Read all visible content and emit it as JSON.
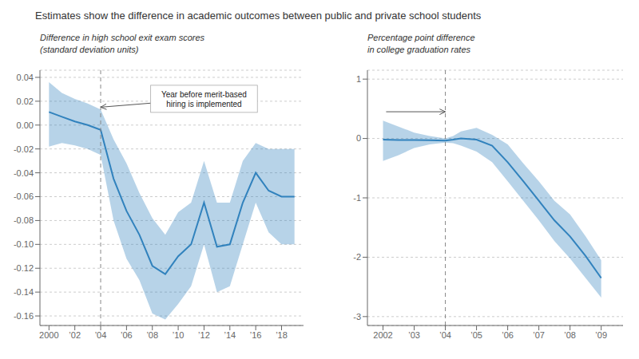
{
  "subtitle": "Estimates show the difference in academic outcomes between public and private school students",
  "chart_data": [
    {
      "type": "line",
      "ylabel": "Difference in high school exit exam scores\n(standard deviation units)",
      "x": [
        2000,
        2001,
        2002,
        2003,
        2004,
        2005,
        2006,
        2007,
        2008,
        2009,
        2010,
        2011,
        2012,
        2013,
        2014,
        2015,
        2016,
        2017,
        2018,
        2019
      ],
      "series": [
        {
          "values": [
            0.011,
            0.007,
            0.003,
            0.0,
            -0.004,
            -0.045,
            -0.072,
            -0.092,
            -0.118,
            -0.125,
            -0.11,
            -0.1,
            -0.065,
            -0.102,
            -0.1,
            -0.065,
            -0.04,
            -0.055,
            -0.06,
            -0.06
          ],
          "upper": [
            0.036,
            0.027,
            0.022,
            0.018,
            0.013,
            -0.012,
            -0.032,
            -0.057,
            -0.078,
            -0.092,
            -0.073,
            -0.065,
            -0.03,
            -0.065,
            -0.065,
            -0.03,
            -0.015,
            -0.02,
            -0.02,
            -0.02
          ],
          "lower": [
            -0.018,
            -0.015,
            -0.017,
            -0.02,
            -0.025,
            -0.08,
            -0.112,
            -0.13,
            -0.158,
            -0.163,
            -0.15,
            -0.135,
            -0.1,
            -0.14,
            -0.135,
            -0.1,
            -0.065,
            -0.09,
            -0.1,
            -0.1
          ]
        }
      ],
      "xlim": [
        1999.3,
        2019.7
      ],
      "ylim": [
        -0.168,
        0.046
      ],
      "xticks": [
        2000,
        {
          "value": 2002,
          "label": "’02"
        },
        {
          "value": 2004,
          "label": "’04"
        },
        {
          "value": 2006,
          "label": "’06"
        },
        {
          "value": 2008,
          "label": "’08"
        },
        {
          "value": 2010,
          "label": "’10"
        },
        {
          "value": 2012,
          "label": "’12"
        },
        {
          "value": 2014,
          "label": "’14"
        },
        {
          "value": 2016,
          "label": "’16"
        },
        {
          "value": 2018,
          "label": "’18"
        }
      ],
      "yticks": [
        0.04,
        0.02,
        {
          "value": 0,
          "label": "0.00"
        },
        -0.02,
        -0.04,
        -0.06,
        -0.08,
        {
          "value": -0.1,
          "label": "-0.10"
        },
        -0.12,
        -0.14,
        -0.16
      ],
      "grid": "y",
      "vline": {
        "x": 2004,
        "line_style": "dashed"
      },
      "annotations": [
        {
          "text": "Year before merit-based\nhiring is implemented",
          "x": 2012,
          "y": 0.022,
          "arrow_to": [
            2004,
            0.015
          ]
        }
      ]
    },
    {
      "type": "line",
      "ylabel": "Percentage point difference\nin college graduation rates",
      "x": [
        2002,
        2002.5,
        2003,
        2003.5,
        2004,
        2004.25,
        2004.5,
        2005,
        2005.5,
        2006,
        2006.5,
        2007,
        2007.5,
        2008,
        2008.5,
        2009
      ],
      "series": [
        {
          "values": [
            -0.02,
            -0.025,
            -0.025,
            -0.03,
            -0.035,
            -0.02,
            0.0,
            -0.02,
            -0.12,
            -0.4,
            -0.72,
            -1.05,
            -1.38,
            -1.65,
            -1.98,
            -2.35
          ],
          "upper": [
            0.3,
            0.2,
            0.1,
            0.04,
            0.0,
            0.04,
            0.12,
            0.18,
            0.06,
            -0.1,
            -0.42,
            -0.72,
            -1.05,
            -1.28,
            -1.65,
            -2.05
          ],
          "lower": [
            -0.38,
            -0.28,
            -0.16,
            -0.1,
            -0.07,
            -0.08,
            -0.12,
            -0.22,
            -0.4,
            -0.72,
            -1.05,
            -1.38,
            -1.73,
            -2.02,
            -2.35,
            -2.68
          ]
        }
      ],
      "xlim": [
        2001.5,
        2009.7
      ],
      "ylim": [
        -3.15,
        1.15
      ],
      "xticks": [
        2002,
        {
          "value": 2003,
          "label": "’03"
        },
        {
          "value": 2004,
          "label": "’04"
        },
        {
          "value": 2005,
          "label": "’05"
        },
        {
          "value": 2006,
          "label": "’06"
        },
        {
          "value": 2007,
          "label": "’07"
        },
        {
          "value": 2008,
          "label": "’08"
        },
        {
          "value": 2009,
          "label": "’09"
        }
      ],
      "yticks": [
        1,
        0,
        -1,
        -2,
        -3
      ],
      "grid": "y",
      "vline": {
        "x": 2004,
        "line_style": "dashed"
      },
      "annotations": [
        {
          "x": 2002.1,
          "y": 0.45,
          "arrow_to": [
            2004,
            0.45
          ]
        }
      ]
    }
  ]
}
